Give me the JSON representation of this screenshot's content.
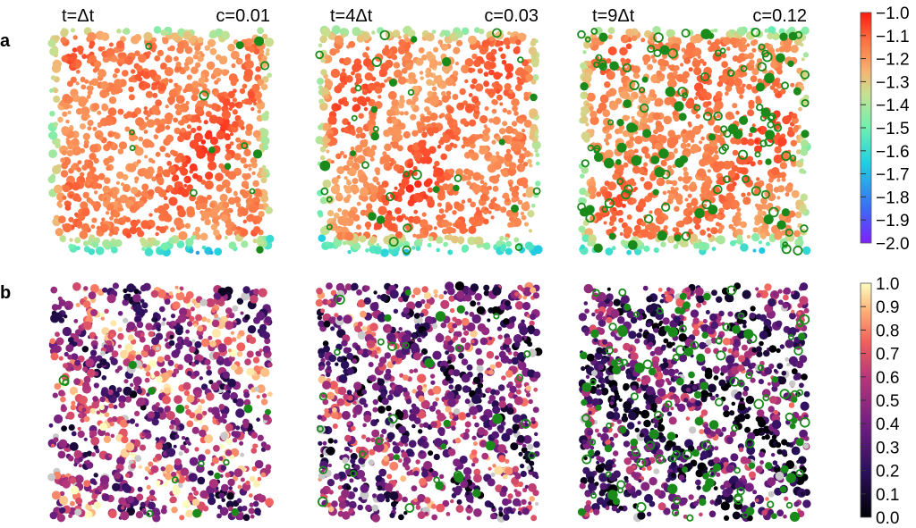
{
  "chart_data": {
    "type": "scatter",
    "row_labels": [
      "a",
      "b"
    ],
    "columns": [
      {
        "time_label": "t=Δt",
        "c_label": "c=0.01",
        "c": 0.01
      },
      {
        "time_label": "t=4Δt",
        "c_label": "c=0.03",
        "c": 0.03
      },
      {
        "time_label": "t=9Δt",
        "c_label": "c=0.12",
        "c": 0.12
      }
    ],
    "colorbars": [
      {
        "row": "a",
        "colormap": "rainbow",
        "range": [
          -2.0,
          -1.0
        ],
        "ticks": [
          "−1.0",
          "−1.1",
          "−1.2",
          "−1.3",
          "−1.4",
          "−1.5",
          "−1.6",
          "−1.7",
          "−1.8",
          "−1.9",
          "−2.0"
        ]
      },
      {
        "row": "b",
        "colormap": "magma",
        "range": [
          0.0,
          1.0
        ],
        "ticks": [
          "1.0",
          "0.9",
          "0.8",
          "0.7",
          "0.6",
          "0.5",
          "0.4",
          "0.3",
          "0.2",
          "0.1",
          "0.0"
        ]
      }
    ],
    "highlight_color": "#1a8a1a"
  }
}
